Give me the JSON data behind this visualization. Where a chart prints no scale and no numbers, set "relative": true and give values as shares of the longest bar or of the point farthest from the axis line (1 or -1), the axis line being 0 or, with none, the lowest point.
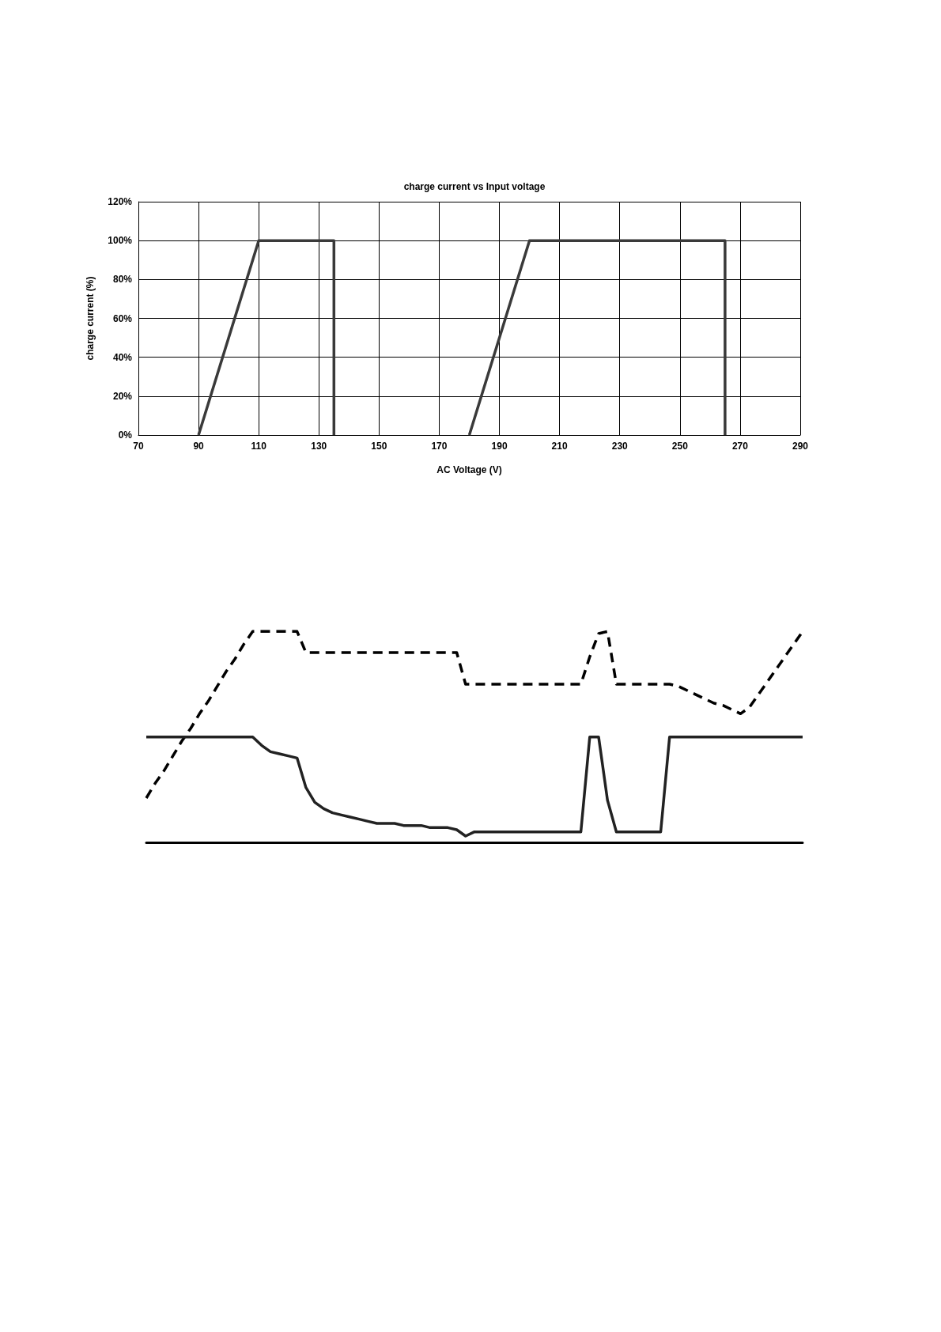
{
  "chart_data": [
    {
      "type": "line",
      "title": "charge current vs Input voltage",
      "xlabel": "AC Voltage (V)",
      "ylabel": "charge current (%)",
      "xlim": [
        70,
        290
      ],
      "xticks": [
        70,
        90,
        110,
        130,
        150,
        170,
        190,
        210,
        230,
        250,
        270,
        290
      ],
      "ylim": [
        0,
        120
      ],
      "yticks": [
        {
          "value": 0,
          "label": "0%"
        },
        {
          "value": 20,
          "label": "20%"
        },
        {
          "value": 40,
          "label": "40%"
        },
        {
          "value": 60,
          "label": "60%"
        },
        {
          "value": 80,
          "label": "80%"
        },
        {
          "value": 100,
          "label": "100%"
        },
        {
          "value": 120,
          "label": "120%"
        }
      ],
      "grid": true,
      "marker": "none",
      "line_style": "solid",
      "series": [
        {
          "color": "#3a3a3a",
          "x": [
            90,
            110,
            135,
            135
          ],
          "values": [
            0,
            100,
            100,
            0
          ]
        },
        {
          "color": "#3a3a3a",
          "x": [
            180,
            200,
            265,
            265
          ],
          "values": [
            0,
            100,
            100,
            0
          ]
        }
      ]
    },
    {
      "type": "line",
      "relative": true,
      "tick_labels": false,
      "marker": "none",
      "categories": [
        null,
        null,
        null,
        null,
        null,
        null,
        null,
        null,
        null,
        null,
        null,
        null,
        null,
        null,
        null,
        null,
        null,
        null,
        null,
        null,
        null,
        null,
        null,
        null,
        null,
        null,
        null,
        null,
        null,
        null,
        null,
        null,
        null,
        null,
        null,
        null,
        null,
        null,
        null,
        null,
        null,
        null,
        null,
        null,
        null,
        null,
        null,
        null,
        null,
        null,
        null,
        null,
        null,
        null,
        null,
        null,
        null,
        null,
        null,
        null,
        null,
        null,
        null,
        null,
        null,
        null,
        null,
        null,
        null,
        null,
        null,
        null,
        null,
        null,
        null
      ],
      "series": [
        {
          "color": "#000000",
          "line_style": "dashed",
          "values": [
            0.21,
            0.28,
            0.34,
            0.41,
            0.48,
            0.54,
            0.61,
            0.67,
            0.74,
            0.81,
            0.87,
            0.94,
            1,
            1,
            1,
            1,
            1,
            1,
            0.9,
            0.9,
            0.9,
            0.9,
            0.9,
            0.9,
            0.9,
            0.9,
            0.9,
            0.9,
            0.9,
            0.9,
            0.9,
            0.9,
            0.9,
            0.9,
            0.9,
            0.9,
            0.75,
            0.75,
            0.75,
            0.75,
            0.75,
            0.75,
            0.75,
            0.75,
            0.75,
            0.75,
            0.75,
            0.75,
            0.75,
            0.75,
            0.88,
            0.99,
            1,
            0.75,
            0.75,
            0.75,
            0.75,
            0.75,
            0.75,
            0.75,
            0.74,
            0.72,
            0.7,
            0.68,
            0.66,
            0.65,
            0.63,
            0.61,
            0.64,
            0.7,
            0.76,
            0.82,
            0.88,
            0.94,
            1
          ]
        },
        {
          "color": "#222222",
          "line_style": "solid",
          "values": [
            0.5,
            0.5,
            0.5,
            0.5,
            0.5,
            0.5,
            0.5,
            0.5,
            0.5,
            0.5,
            0.5,
            0.5,
            0.5,
            0.46,
            0.43,
            0.42,
            0.41,
            0.4,
            0.26,
            0.19,
            0.16,
            0.14,
            0.13,
            0.12,
            0.11,
            0.1,
            0.09,
            0.09,
            0.09,
            0.08,
            0.08,
            0.08,
            0.07,
            0.07,
            0.07,
            0.06,
            0.03,
            0.05,
            0.05,
            0.05,
            0.05,
            0.05,
            0.05,
            0.05,
            0.05,
            0.05,
            0.05,
            0.05,
            0.05,
            0.05,
            0.5,
            0.5,
            0.2,
            0.05,
            0.05,
            0.05,
            0.05,
            0.05,
            0.05,
            0.5,
            0.5,
            0.5,
            0.5,
            0.5,
            0.5,
            0.5,
            0.5,
            0.5,
            0.5,
            0.5,
            0.5,
            0.5,
            0.5,
            0.5,
            0.5
          ]
        }
      ]
    }
  ]
}
